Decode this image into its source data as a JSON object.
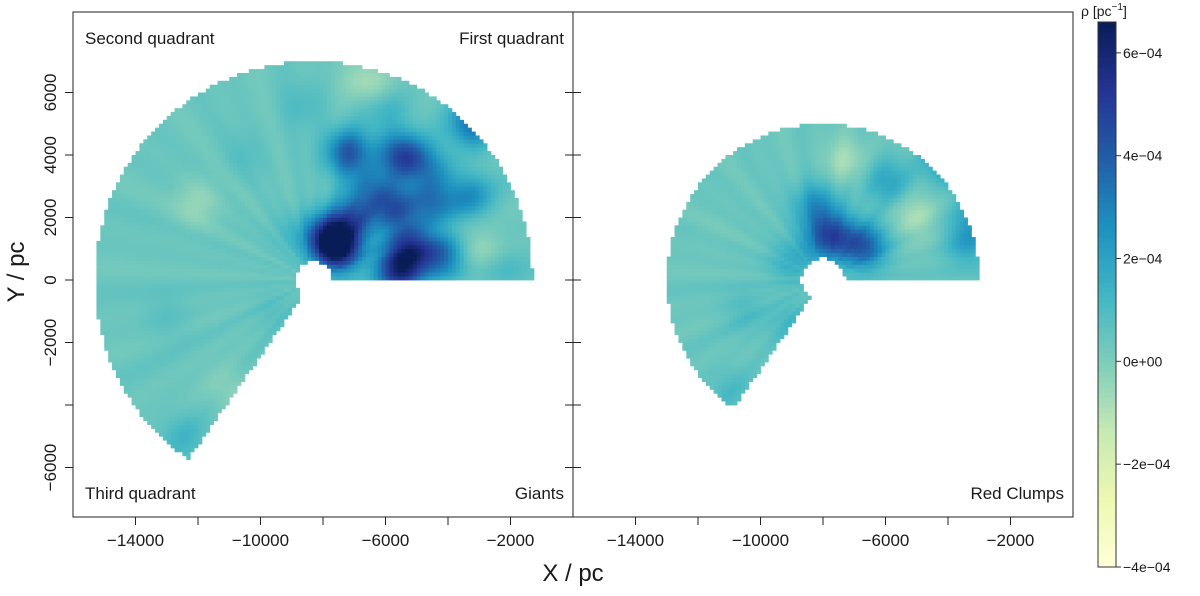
{
  "chart_data": [
    {
      "type": "heatmap",
      "panel_label": "Giants",
      "quadrant_labels": {
        "top_left": "Second quadrant",
        "top_right": "First quadrant",
        "bottom_left": "Third quadrant"
      },
      "xlim": [
        -16000,
        0
      ],
      "ylim": [
        -7500,
        8500
      ],
      "x_ticks": [
        -14000,
        -12000,
        -10000,
        -8000,
        -6000,
        -4000,
        -2000
      ],
      "x_tick_labels": [
        "−14000",
        "",
        "−10000",
        "",
        "−6000",
        "",
        "−2000"
      ],
      "y_ticks": [
        -6000,
        -4000,
        -2000,
        0,
        2000,
        4000,
        6000
      ],
      "y_tick_labels": [
        "−6000",
        "",
        "−2000",
        "0",
        "2000",
        "4000",
        "6000"
      ],
      "ylabel": "Y / pc",
      "region": {
        "sun_x": -8300,
        "sun_y": 0,
        "r_inner": 600,
        "r_outer": 7000,
        "angle_start_deg": 0,
        "angle_end_deg": 235
      },
      "blobs": [
        {
          "x": -7500,
          "y": 1000,
          "value": 0.00055
        },
        {
          "x": -7800,
          "y": 1400,
          "value": 0.0005
        },
        {
          "x": -7000,
          "y": 2000,
          "value": 0.00035
        },
        {
          "x": -7200,
          "y": 4100,
          "value": 0.0004
        },
        {
          "x": -5500,
          "y": 4000,
          "value": 0.00045
        },
        {
          "x": -5700,
          "y": 2300,
          "value": 0.0004
        },
        {
          "x": -5200,
          "y": 1000,
          "value": 0.00045
        },
        {
          "x": -5600,
          "y": 300,
          "value": 0.0005
        },
        {
          "x": -4200,
          "y": 800,
          "value": 0.00035
        },
        {
          "x": -4500,
          "y": 2500,
          "value": 0.0003
        },
        {
          "x": -3200,
          "y": 5000,
          "value": 0.00035
        },
        {
          "x": -4600,
          "y": 3600,
          "value": 0.00025
        },
        {
          "x": -6500,
          "y": 3000,
          "value": 0.00025
        },
        {
          "x": -6000,
          "y": 5500,
          "value": 0.00015
        },
        {
          "x": -3300,
          "y": 2700,
          "value": 0.00025
        },
        {
          "x": -8600,
          "y": 5600,
          "value": 0.0001
        },
        {
          "x": -10500,
          "y": 4000,
          "value": 8e-05
        },
        {
          "x": -9000,
          "y": 1500,
          "value": 0.0001
        },
        {
          "x": -12500,
          "y": -5000,
          "value": 0.00012
        },
        {
          "x": -13000,
          "y": -1200,
          "value": 8e-05
        },
        {
          "x": -9500,
          "y": -1000,
          "value": 8e-05
        },
        {
          "x": -12000,
          "y": 2500,
          "value": -5e-05
        },
        {
          "x": -6500,
          "y": 6300,
          "value": -0.0001
        },
        {
          "x": -3000,
          "y": 1000,
          "value": -5e-05
        },
        {
          "x": -11000,
          "y": -3500,
          "value": -3e-05
        },
        {
          "x": -2200,
          "y": 300,
          "value": 0.0001
        }
      ],
      "background_value": 4e-05
    },
    {
      "type": "heatmap",
      "panel_label": "Red Clumps",
      "xlim": [
        -16000,
        0
      ],
      "x_ticks": [
        -14000,
        -12000,
        -10000,
        -8000,
        -6000,
        -4000,
        -2000
      ],
      "x_tick_labels": [
        "−14000",
        "",
        "−10000",
        "",
        "−6000",
        "",
        "−2000"
      ],
      "xlabel": "X / pc",
      "region": {
        "sun_x": -8000,
        "sun_y": 0,
        "r_inner": 700,
        "r_outer": 5000,
        "angle_start_deg": 0,
        "angle_end_deg": 235
      },
      "blobs": [
        {
          "x": -7800,
          "y": 1400,
          "value": 0.00045
        },
        {
          "x": -6700,
          "y": 1100,
          "value": 0.0004
        },
        {
          "x": -8200,
          "y": 2400,
          "value": 0.00025
        },
        {
          "x": -6000,
          "y": 3200,
          "value": 0.0002
        },
        {
          "x": -4000,
          "y": 3800,
          "value": 0.00025
        },
        {
          "x": -3400,
          "y": 1300,
          "value": 0.00022
        },
        {
          "x": -2900,
          "y": 2200,
          "value": 0.0002
        },
        {
          "x": -9000,
          "y": 600,
          "value": 0.00015
        },
        {
          "x": -9000,
          "y": -1400,
          "value": 0.00012
        },
        {
          "x": -10500,
          "y": -1000,
          "value": 0.0001
        },
        {
          "x": -11000,
          "y": -3500,
          "value": 0.0001
        },
        {
          "x": -7200,
          "y": 3800,
          "value": -8e-05
        },
        {
          "x": -5000,
          "y": 2000,
          "value": -8e-05
        },
        {
          "x": -11500,
          "y": 1500,
          "value": 3e-05
        }
      ],
      "background_value": 4e-05
    }
  ],
  "colorbar": {
    "title": "ρ [pc",
    "title_sup": "−1",
    "title_end": "]",
    "min": -0.0004,
    "max": 0.00066,
    "ticks": [
      -0.0004,
      -0.0002,
      0,
      0.0002,
      0.0004,
      0.0006
    ],
    "tick_labels": [
      "−4e−04",
      "−2e−04",
      "0e+00",
      "2e−04",
      "4e−04",
      "6e−04"
    ],
    "colors": [
      "#ffffd9",
      "#edf8b1",
      "#c7e9b4",
      "#7fcdbb",
      "#41b6c4",
      "#1d91c0",
      "#225ea8",
      "#253494",
      "#081d58"
    ]
  }
}
